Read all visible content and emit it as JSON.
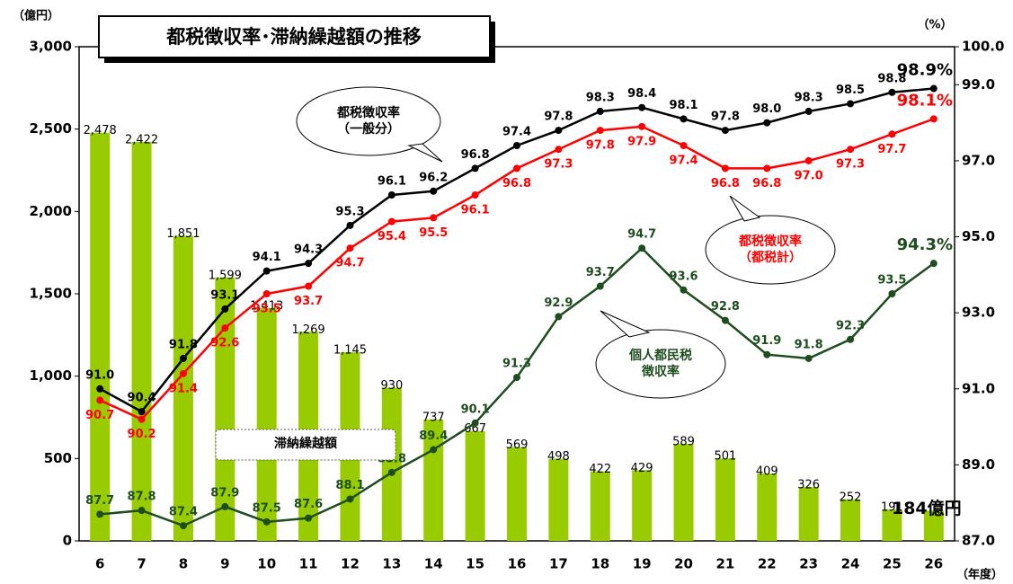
{
  "chart_data": {
    "type": "bar_line",
    "title": "都税徴収率･滞納繰越額の推移",
    "y_unit": "（億円）",
    "y2_unit": "（%）",
    "x_unit": "（年度）",
    "categories": [
      "6",
      "7",
      "8",
      "9",
      "10",
      "11",
      "12",
      "13",
      "14",
      "15",
      "16",
      "17",
      "18",
      "19",
      "20",
      "21",
      "22",
      "23",
      "24",
      "25",
      "26"
    ],
    "ylim": [
      0,
      3000
    ],
    "yticks": [
      0,
      500,
      {
        "value": 1000,
        "label": "1,000"
      },
      {
        "value": 1500,
        "label": "1,500"
      },
      {
        "value": 2000,
        "label": "2,000"
      },
      {
        "value": 2500,
        "label": "2,500"
      },
      {
        "value": 3000,
        "label": "3,000"
      }
    ],
    "y2lim": [
      87,
      100
    ],
    "y2ticks": [
      {
        "value": 87,
        "label": "87.0"
      },
      {
        "value": 89,
        "label": "89.0"
      },
      {
        "value": 91,
        "label": "91.0"
      },
      {
        "value": 93,
        "label": "93.0"
      },
      {
        "value": 95,
        "label": "95.0"
      },
      {
        "value": 97,
        "label": "97.0"
      },
      {
        "value": 99,
        "label": "99.0"
      },
      {
        "value": 100,
        "label": "100.0"
      }
    ],
    "series": [
      {
        "name": "滞納繰越額",
        "kind": "bar",
        "color": "#99cc00",
        "label_color": "#000000",
        "values": [
          2478,
          2422,
          1851,
          1599,
          1413,
          1269,
          1145,
          930,
          737,
          667,
          569,
          498,
          422,
          429,
          589,
          501,
          409,
          326,
          252,
          191,
          184
        ],
        "value_labels": [
          "2,478",
          "2,422",
          "1,851",
          "1,599",
          "1,413",
          "1,269",
          "1,145",
          "930",
          "737",
          "667",
          "569",
          "498",
          "422",
          "429",
          "589",
          "501",
          "409",
          "326",
          "252",
          "191",
          "184億円"
        ]
      },
      {
        "name": "都税徴収率\n（一般分）",
        "kind": "line",
        "axis": "y2",
        "color": "#000000",
        "label_color": "#000000",
        "values": [
          91.0,
          90.4,
          91.8,
          93.1,
          94.1,
          94.3,
          95.3,
          96.1,
          96.2,
          96.8,
          97.4,
          97.8,
          98.3,
          98.4,
          98.1,
          97.8,
          98.0,
          98.3,
          98.5,
          98.8,
          98.9
        ],
        "value_labels": [
          "91.0",
          "90.4",
          "91.8",
          "93.1",
          "94.1",
          "94.3",
          "95.3",
          "96.1",
          "96.2",
          "96.8",
          "97.4",
          "97.8",
          "98.3",
          "98.4",
          "98.1",
          "97.8",
          "98.0",
          "98.3",
          "98.5",
          "98.8",
          "98.9%"
        ]
      },
      {
        "name": "都税徴収率\n（都税計）",
        "kind": "line",
        "axis": "y2",
        "color": "#ff0000",
        "label_color": "#ff0000",
        "values": [
          90.7,
          90.2,
          91.4,
          92.6,
          93.5,
          93.7,
          94.7,
          95.4,
          95.5,
          96.1,
          96.8,
          97.3,
          97.8,
          97.9,
          97.4,
          96.8,
          96.8,
          97.0,
          97.3,
          97.7,
          98.1
        ],
        "value_labels": [
          "90.7",
          "90.2",
          "91.4",
          "92.6",
          "93.5",
          "93.7",
          "94.7",
          "95.4",
          "95.5",
          "96.1",
          "96.8",
          "97.3",
          "97.8",
          "97.9",
          "97.4",
          "96.8",
          "96.8",
          "97.0",
          "97.3",
          "97.7",
          "98.1%"
        ]
      },
      {
        "name": "個人都民税\n徴収率",
        "kind": "line",
        "axis": "y2",
        "color": "#1e4d1e",
        "label_color": "#1e4d1e",
        "values": [
          87.7,
          87.8,
          87.4,
          87.9,
          87.5,
          87.6,
          88.1,
          88.8,
          89.4,
          90.1,
          91.3,
          92.9,
          93.7,
          94.7,
          93.6,
          92.8,
          91.9,
          91.8,
          92.3,
          93.5,
          94.3
        ],
        "value_labels": [
          "87.7",
          "87.8",
          "87.4",
          "87.9",
          "87.5",
          "87.6",
          "88.1",
          "88.8",
          "89.4",
          "90.1",
          "91.3",
          "92.9",
          "93.7",
          "94.7",
          "93.6",
          "92.8",
          "91.9",
          "91.8",
          "92.3",
          "93.5",
          "94.3%"
        ]
      }
    ]
  }
}
